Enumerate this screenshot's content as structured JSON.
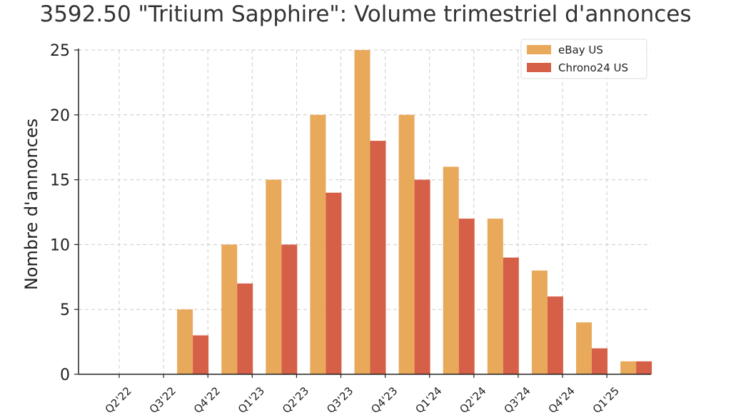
{
  "chart_data": {
    "type": "bar",
    "title": "3592.50 \"Tritium Sapphire\": Volume trimestriel d'annonces",
    "xlabel": "",
    "ylabel": "Nombre d'annonces",
    "categories": [
      "Q2'22",
      "Q3'22",
      "Q4'22",
      "Q1'23",
      "Q2'23",
      "Q3'23",
      "Q4'23",
      "Q1'24",
      "Q2'24",
      "Q3'24",
      "Q4'24",
      "Q1'25"
    ],
    "series": [
      {
        "name": "eBay US",
        "color": "#E8A95B",
        "values": [
          0,
          5,
          10,
          15,
          20,
          25,
          20,
          16,
          12,
          8,
          4,
          1
        ]
      },
      {
        "name": "Chrono24 US",
        "color": "#D65F48",
        "values": [
          0,
          3,
          7,
          10,
          14,
          18,
          15,
          12,
          9,
          6,
          2,
          1
        ]
      }
    ],
    "ylim": [
      0,
      25
    ],
    "yticks": [
      0,
      5,
      10,
      15,
      20,
      25
    ],
    "grid": true,
    "legend_position": "top-right"
  }
}
